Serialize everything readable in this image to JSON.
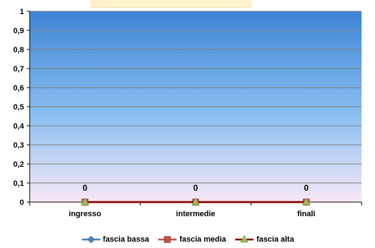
{
  "chart_data": {
    "type": "line",
    "title": "",
    "xlabel": "",
    "ylabel": "",
    "categories": [
      "ingresso",
      "intermedie",
      "finali"
    ],
    "ylim": [
      0,
      1
    ],
    "yticks": [
      "0",
      "0,1",
      "0,2",
      "0,3",
      "0,4",
      "0,5",
      "0,6",
      "0,7",
      "0,8",
      "0,9",
      "1"
    ],
    "grid": true,
    "legend_position": "bottom",
    "series": [
      {
        "name": "fascia bassa",
        "values": [
          0,
          0,
          0
        ],
        "color": "#4a7ebb",
        "marker": "diamond"
      },
      {
        "name": "fascia media",
        "values": [
          0,
          0,
          0
        ],
        "color": "#c0504d",
        "marker": "square"
      },
      {
        "name": "fascia alta",
        "values": [
          0,
          0,
          0
        ],
        "color": "#9bbb59",
        "line_color": "#8b0000",
        "marker": "triangle"
      }
    ],
    "data_labels": [
      "0",
      "0",
      "0"
    ],
    "colors": {
      "plot_top": "#3d85d6",
      "plot_bottom": "#f8e8f6",
      "gridline": "#7f7f7f",
      "title_box": "#fff2cc"
    }
  }
}
